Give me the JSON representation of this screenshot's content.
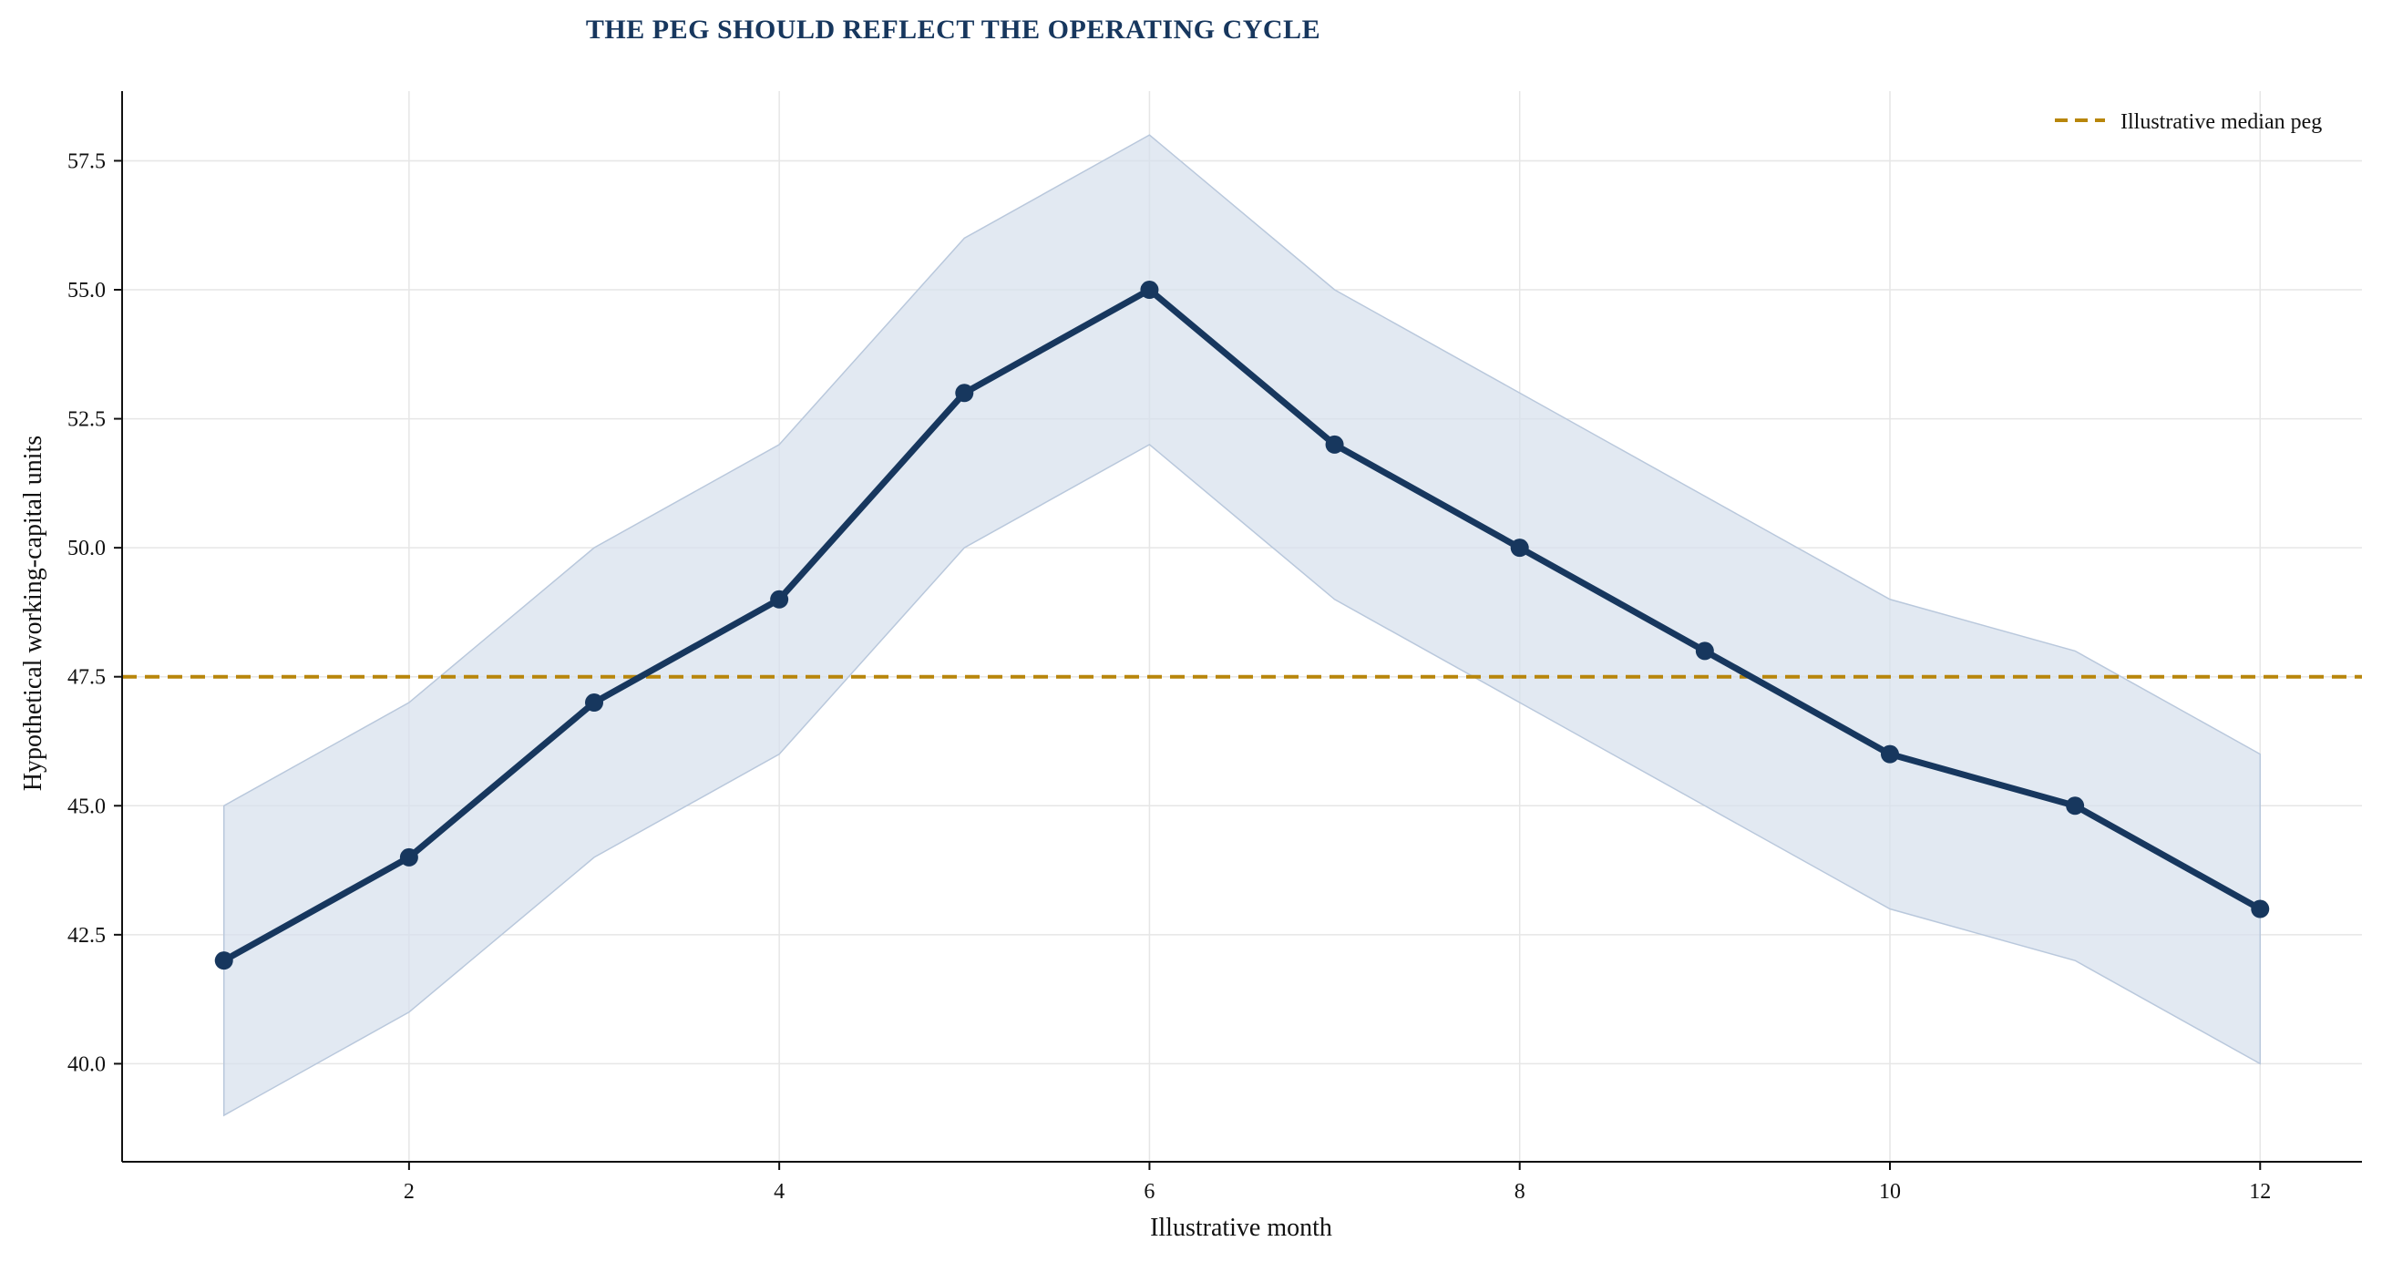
{
  "chart_data": {
    "type": "line",
    "title": "THE PEG SHOULD REFLECT THE OPERATING CYCLE",
    "xlabel": "Illustrative month",
    "ylabel": "Hypothetical working-capital units",
    "x": [
      1,
      2,
      3,
      4,
      5,
      6,
      7,
      8,
      9,
      10,
      11,
      12
    ],
    "series": [
      {
        "values": [
          42,
          44,
          47,
          49,
          53,
          55,
          52,
          50,
          48,
          46,
          45,
          43
        ],
        "color": "#17375e"
      }
    ],
    "band": {
      "lower": [
        39,
        41,
        44,
        46,
        50,
        52,
        49,
        47,
        45,
        43,
        42,
        40
      ],
      "upper": [
        45,
        47,
        50,
        52,
        56,
        58,
        55,
        53,
        51,
        49,
        48,
        46
      ],
      "color": "#d6e0ec"
    },
    "reference_line": {
      "name": "Illustrative median peg",
      "value": 47.5,
      "color": "#b8860b",
      "style": "dashed"
    },
    "x_ticks": [
      2,
      4,
      6,
      8,
      10,
      12
    ],
    "y_ticks": [
      40.0,
      42.5,
      45.0,
      47.5,
      50.0,
      52.5,
      55.0,
      57.5
    ],
    "y_tick_labels": [
      "40.0",
      "42.5",
      "45.0",
      "47.5",
      "50.0",
      "52.5",
      "55.0",
      "57.5"
    ],
    "xlim": [
      0.45,
      12.55
    ],
    "ylim": [
      38.1,
      58.85
    ],
    "grid": true,
    "legend_position": "top-right"
  }
}
